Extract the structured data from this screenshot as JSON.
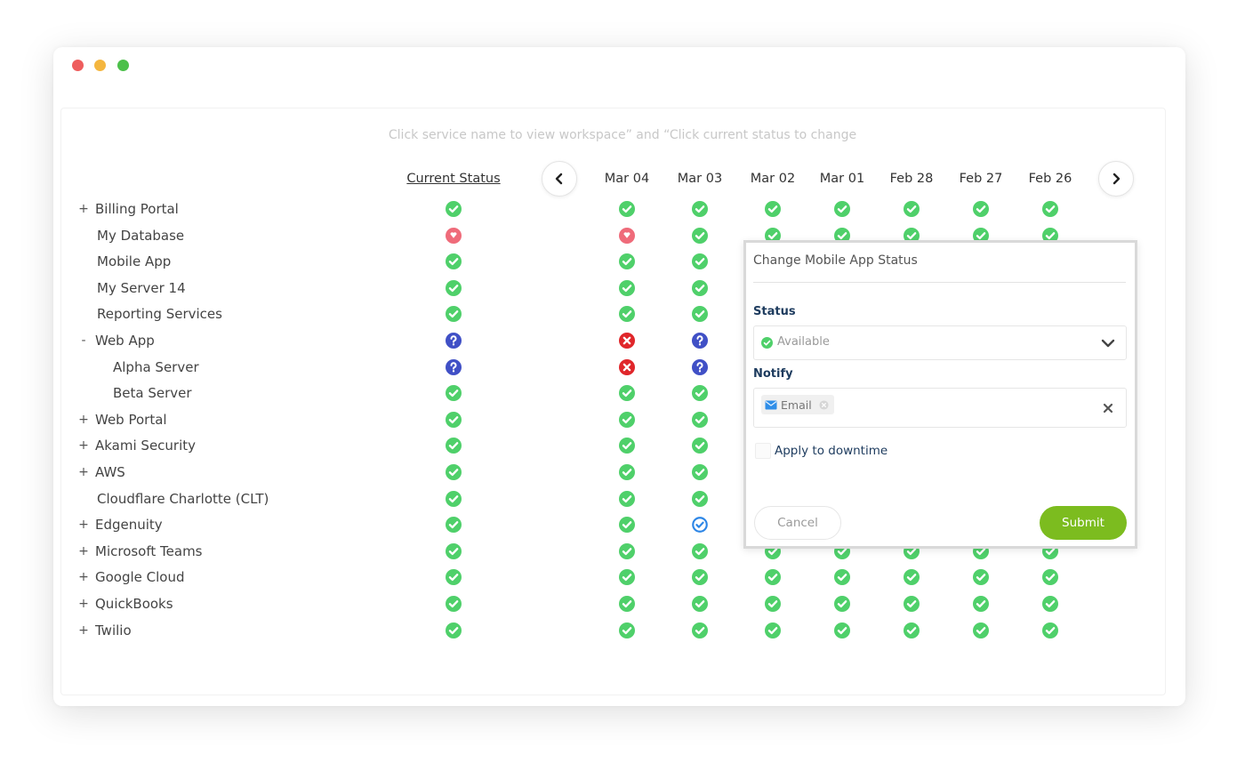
{
  "hint": "Click service name to view workspace” and “Click current status to change",
  "columns": {
    "current_status": "Current Status",
    "dates": [
      "Mar 04",
      "Mar 03",
      "Mar 02",
      "Mar 01",
      "Feb 28",
      "Feb 27",
      "Feb 26"
    ]
  },
  "colors": {
    "ok": "#4fd06a",
    "down": "#ef6b7a",
    "error": "#e0262a",
    "unknown": "#4050c6",
    "maintenance": "#2d86e6",
    "submit": "#7cbc1f"
  },
  "rows": [
    {
      "name": "Billing Portal",
      "toggle": "+",
      "depth": 0,
      "current": "ok",
      "history": [
        "ok",
        "ok",
        "ok",
        "ok",
        "ok",
        "ok",
        "ok"
      ]
    },
    {
      "name": "My Database",
      "toggle": "",
      "depth": 1,
      "current": "down",
      "history": [
        "down",
        "ok",
        "ok",
        "ok",
        "ok",
        "ok",
        "ok"
      ]
    },
    {
      "name": "Mobile App",
      "toggle": "",
      "depth": 1,
      "current": "ok",
      "history": [
        "ok",
        "ok",
        "ok",
        "ok",
        "ok",
        "ok",
        "ok"
      ]
    },
    {
      "name": "My Server 14",
      "toggle": "",
      "depth": 1,
      "current": "ok",
      "history": [
        "ok",
        "ok",
        "ok",
        "ok",
        "ok",
        "ok",
        "ok"
      ]
    },
    {
      "name": "Reporting Services",
      "toggle": "",
      "depth": 1,
      "current": "ok",
      "history": [
        "ok",
        "ok",
        "ok",
        "ok",
        "ok",
        "ok",
        "ok"
      ]
    },
    {
      "name": "Web App",
      "toggle": "-",
      "depth": 0,
      "current": "unknown",
      "history": [
        "error",
        "unknown",
        "ok",
        "ok",
        "ok",
        "ok",
        "ok"
      ]
    },
    {
      "name": "Alpha Server",
      "toggle": "",
      "depth": 2,
      "current": "unknown",
      "history": [
        "error",
        "unknown",
        "ok",
        "ok",
        "ok",
        "ok",
        "ok"
      ]
    },
    {
      "name": "Beta Server",
      "toggle": "",
      "depth": 2,
      "current": "ok",
      "history": [
        "ok",
        "ok",
        "ok",
        "ok",
        "ok",
        "ok",
        "ok"
      ]
    },
    {
      "name": "Web Portal",
      "toggle": "+",
      "depth": 0,
      "current": "ok",
      "history": [
        "ok",
        "ok",
        "ok",
        "ok",
        "ok",
        "ok",
        "ok"
      ]
    },
    {
      "name": "Akami Security",
      "toggle": "+",
      "depth": 0,
      "current": "ok",
      "history": [
        "ok",
        "ok",
        "ok",
        "ok",
        "ok",
        "ok",
        "ok"
      ]
    },
    {
      "name": "AWS",
      "toggle": "+",
      "depth": 0,
      "current": "ok",
      "history": [
        "ok",
        "ok",
        "ok",
        "ok",
        "ok",
        "ok",
        "ok"
      ]
    },
    {
      "name": "Cloudflare Charlotte (CLT)",
      "toggle": "",
      "depth": 1,
      "current": "ok",
      "history": [
        "ok",
        "ok",
        "ok",
        "ok",
        "ok",
        "ok",
        "ok"
      ]
    },
    {
      "name": "Edgenuity",
      "toggle": "+",
      "depth": 0,
      "current": "ok",
      "history": [
        "ok",
        "maintenance",
        "ok",
        "ok",
        "ok",
        "ok",
        "ok"
      ]
    },
    {
      "name": "Microsoft Teams",
      "toggle": "+",
      "depth": 0,
      "current": "ok",
      "history": [
        "ok",
        "ok",
        "ok",
        "ok",
        "ok",
        "ok",
        "ok"
      ]
    },
    {
      "name": "Google Cloud",
      "toggle": "+",
      "depth": 0,
      "current": "ok",
      "history": [
        "ok",
        "ok",
        "ok",
        "ok",
        "ok",
        "ok",
        "ok"
      ]
    },
    {
      "name": "QuickBooks",
      "toggle": "+",
      "depth": 0,
      "current": "ok",
      "history": [
        "ok",
        "ok",
        "ok",
        "ok",
        "ok",
        "ok",
        "ok"
      ]
    },
    {
      "name": "Twilio",
      "toggle": "+",
      "depth": 0,
      "current": "ok",
      "history": [
        "ok",
        "ok",
        "ok",
        "ok",
        "ok",
        "ok",
        "ok"
      ]
    }
  ],
  "modal": {
    "title": "Change Mobile App Status",
    "status_label": "Status",
    "status_value": "Available",
    "notify_label": "Notify",
    "notify_tag": "Email",
    "apply_label": "Apply to downtime",
    "cancel_label": "Cancel",
    "submit_label": "Submit"
  }
}
